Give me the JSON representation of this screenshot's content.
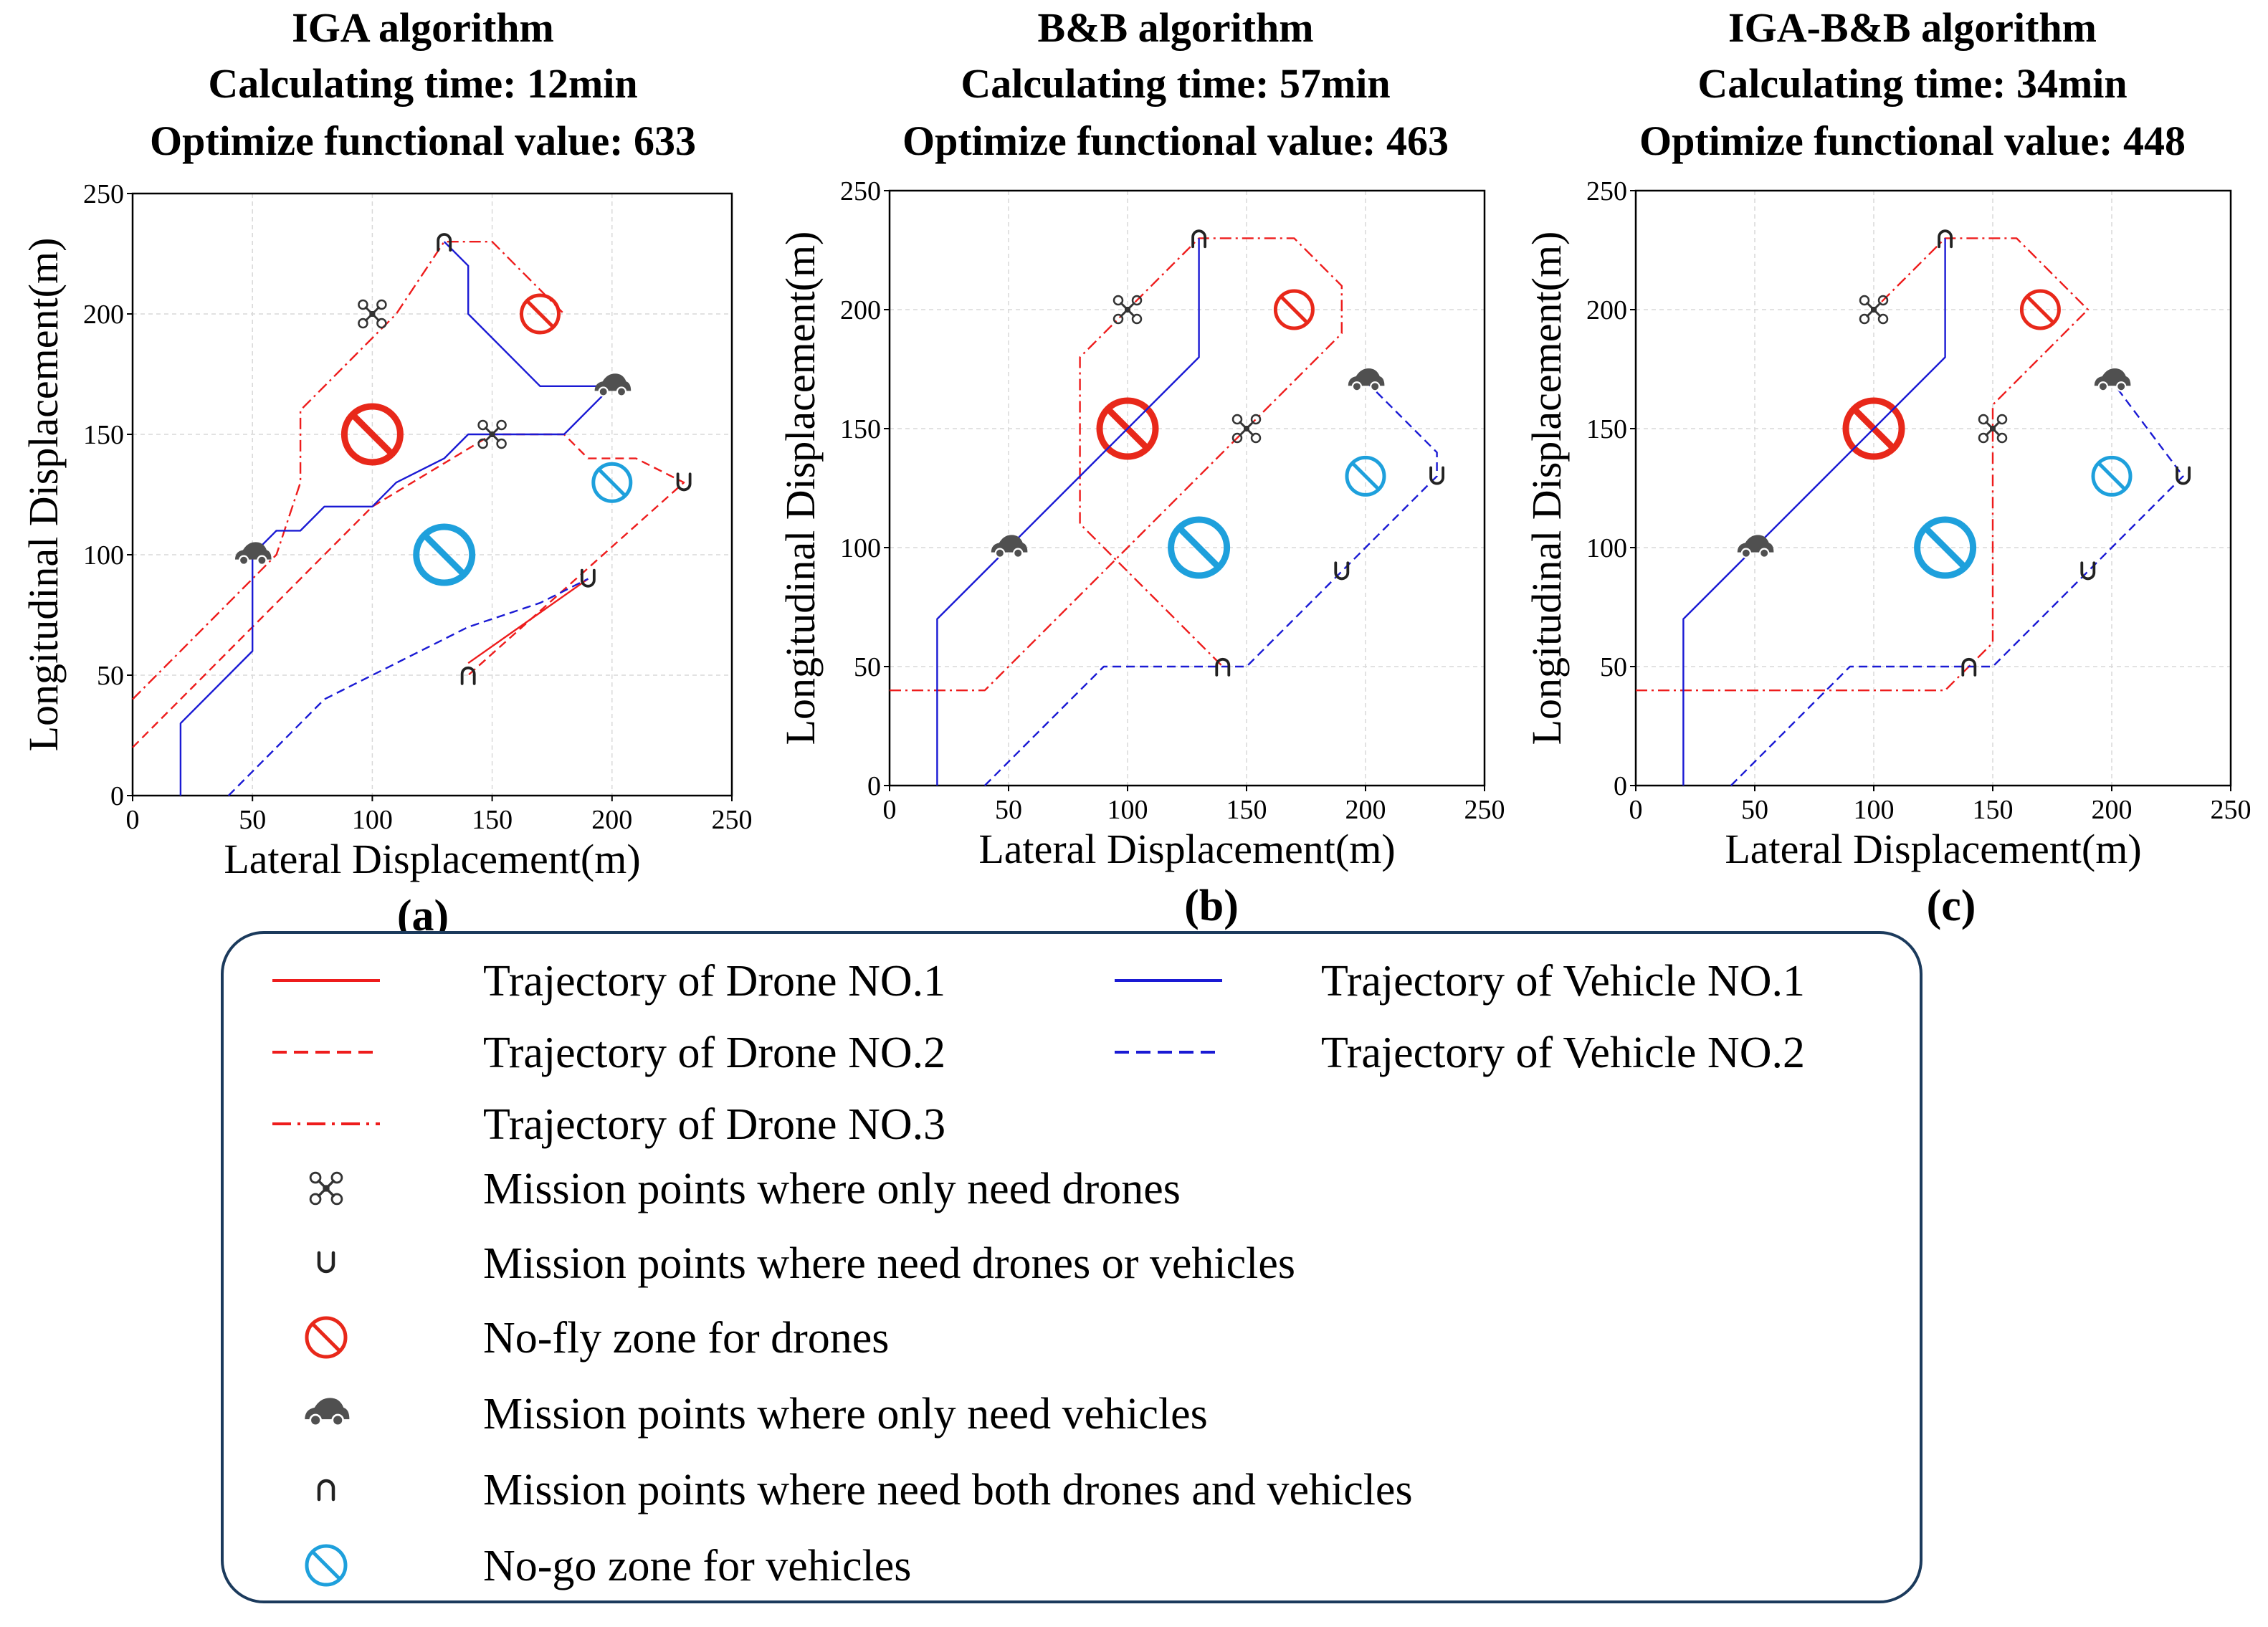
{
  "colors": {
    "drone": "#ee1c1c",
    "vehicle": "#1a1ad4",
    "nofly": "#e8281a",
    "nogo": "#1ea0dc",
    "car": "#505050",
    "grid": "#d9d9d9",
    "legend_border": "#1b3a5c"
  },
  "chart_data": [
    {
      "type": "line",
      "panel_label": "(a)",
      "title": [
        "IGA algorithm",
        "Calculating time: 12min",
        "Optimize functional value: 633"
      ],
      "xlabel": "Lateral Displacement(m)",
      "ylabel": "Longitudinal Displacement(m)",
      "xlim": [
        0,
        250
      ],
      "ylim": [
        0,
        250
      ],
      "xticks": [
        "0",
        "50",
        "100",
        "150",
        "200",
        "250"
      ],
      "yticks": [
        "0",
        "50",
        "100",
        "150",
        "200",
        "250"
      ],
      "grid": true,
      "series": [
        {
          "name": "Trajectory of Drone NO.1",
          "style": "solid",
          "color": "drone",
          "points": [
            [
              140,
              55
            ],
            [
              190,
              90
            ]
          ]
        },
        {
          "name": "Trajectory of Drone NO.2",
          "style": "dashed",
          "color": "drone",
          "points": [
            [
              0,
              20
            ],
            [
              70,
              90
            ],
            [
              80,
              100
            ],
            [
              100,
              120
            ],
            [
              150,
              150
            ],
            [
              180,
              150
            ],
            [
              190,
              140
            ],
            [
              210,
              140
            ],
            [
              230,
              130
            ],
            [
              140,
              50
            ]
          ]
        },
        {
          "name": "Trajectory of Drone NO.3",
          "style": "dashdot",
          "color": "drone",
          "points": [
            [
              0,
              40
            ],
            [
              60,
              100
            ],
            [
              70,
              130
            ],
            [
              70,
              160
            ],
            [
              90,
              180
            ],
            [
              110,
              200
            ],
            [
              130,
              230
            ],
            [
              150,
              230
            ],
            [
              160,
              220
            ],
            [
              170,
              210
            ],
            [
              180,
              200
            ]
          ]
        },
        {
          "name": "Trajectory of Vehicle NO.1",
          "style": "solid",
          "color": "vehicle",
          "points": [
            [
              20,
              0
            ],
            [
              20,
              30
            ],
            [
              50,
              60
            ],
            [
              50,
              100
            ],
            [
              60,
              110
            ],
            [
              70,
              110
            ],
            [
              80,
              120
            ],
            [
              100,
              120
            ],
            [
              110,
              130
            ],
            [
              130,
              140
            ],
            [
              140,
              150
            ],
            [
              150,
              150
            ],
            [
              180,
              150
            ],
            [
              200,
              170
            ],
            [
              170,
              170
            ],
            [
              140,
              200
            ],
            [
              140,
              220
            ],
            [
              130,
              230
            ]
          ]
        },
        {
          "name": "Trajectory of Vehicle NO.2",
          "style": "dashed",
          "color": "vehicle",
          "points": [
            [
              40,
              0
            ],
            [
              80,
              40
            ],
            [
              100,
              50
            ],
            [
              120,
              60
            ],
            [
              140,
              70
            ],
            [
              170,
              80
            ],
            [
              190,
              90
            ]
          ]
        }
      ],
      "markers": {
        "drone_only": [
          [
            100,
            200
          ],
          [
            150,
            150
          ]
        ],
        "drone_or_vehicle": [
          [
            190,
            90
          ],
          [
            230,
            130
          ]
        ],
        "both": [
          [
            130,
            230
          ],
          [
            140,
            50
          ]
        ],
        "vehicle_only": [
          [
            50,
            100
          ],
          [
            200,
            170
          ]
        ],
        "no_fly": [
          {
            "center": [
              100,
              150
            ],
            "size": "large"
          },
          {
            "center": [
              170,
              200
            ],
            "size": "small"
          }
        ],
        "no_go": [
          {
            "center": [
              130,
              100
            ],
            "size": "large"
          },
          {
            "center": [
              200,
              130
            ],
            "size": "small"
          }
        ]
      }
    },
    {
      "type": "line",
      "panel_label": "(b)",
      "title": [
        "B&B algorithm",
        "Calculating time: 57min",
        "Optimize functional value: 463"
      ],
      "xlabel": "Lateral Displacement(m)",
      "ylabel": "Longitudinal Displacement(m)",
      "xlim": [
        0,
        250
      ],
      "ylim": [
        0,
        250
      ],
      "xticks": [
        "0",
        "50",
        "100",
        "150",
        "200",
        "250"
      ],
      "yticks": [
        "0",
        "50",
        "100",
        "150",
        "200",
        "250"
      ],
      "grid": true,
      "series": [
        {
          "name": "Trajectory of Drone NO.2",
          "style": "dashed",
          "color": "drone",
          "points": []
        },
        {
          "name": "Trajectory of Drone NO.3",
          "style": "dashdot",
          "color": "drone",
          "points": [
            [
              0,
              40
            ],
            [
              40,
              40
            ],
            [
              150,
              150
            ],
            [
              160,
              160
            ],
            [
              190,
              190
            ],
            [
              190,
              210
            ],
            [
              170,
              230
            ],
            [
              130,
              230
            ],
            [
              100,
              200
            ],
            [
              80,
              180
            ],
            [
              80,
              110
            ],
            [
              140,
              50
            ]
          ]
        },
        {
          "name": "Trajectory of Vehicle NO.1",
          "style": "solid",
          "color": "vehicle",
          "points": [
            [
              20,
              0
            ],
            [
              20,
              70
            ],
            [
              130,
              180
            ],
            [
              130,
              230
            ]
          ]
        },
        {
          "name": "Trajectory of Vehicle NO.2",
          "style": "dashed",
          "color": "vehicle",
          "points": [
            [
              40,
              0
            ],
            [
              90,
              50
            ],
            [
              150,
              50
            ],
            [
              230,
              130
            ],
            [
              230,
              140
            ],
            [
              200,
              170
            ]
          ]
        }
      ],
      "markers": {
        "drone_only": [
          [
            100,
            200
          ],
          [
            150,
            150
          ]
        ],
        "drone_or_vehicle": [
          [
            190,
            90
          ],
          [
            230,
            130
          ]
        ],
        "both": [
          [
            130,
            230
          ],
          [
            140,
            50
          ]
        ],
        "vehicle_only": [
          [
            50,
            100
          ],
          [
            200,
            170
          ]
        ],
        "no_fly": [
          {
            "center": [
              100,
              150
            ],
            "size": "large"
          },
          {
            "center": [
              170,
              200
            ],
            "size": "small"
          }
        ],
        "no_go": [
          {
            "center": [
              130,
              100
            ],
            "size": "large"
          },
          {
            "center": [
              200,
              130
            ],
            "size": "small"
          }
        ]
      }
    },
    {
      "type": "line",
      "panel_label": "(c)",
      "title": [
        "IGA-B&B algorithm",
        "Calculating time: 34min",
        "Optimize functional value: 448"
      ],
      "xlabel": "Lateral Displacement(m)",
      "ylabel": "Longitudinal Displacement(m)",
      "xlim": [
        0,
        250
      ],
      "ylim": [
        0,
        250
      ],
      "xticks": [
        "0",
        "50",
        "100",
        "150",
        "200",
        "250"
      ],
      "yticks": [
        "0",
        "50",
        "100",
        "150",
        "200",
        "250"
      ],
      "grid": true,
      "series": [
        {
          "name": "Trajectory of Drone NO.3",
          "style": "dashdot",
          "color": "drone",
          "points": [
            [
              0,
              40
            ],
            [
              130,
              40
            ],
            [
              150,
              60
            ],
            [
              150,
              160
            ],
            [
              190,
              200
            ],
            [
              160,
              230
            ],
            [
              130,
              230
            ],
            [
              100,
              200
            ]
          ]
        },
        {
          "name": "Trajectory of Vehicle NO.1",
          "style": "solid",
          "color": "vehicle",
          "points": [
            [
              20,
              0
            ],
            [
              20,
              70
            ],
            [
              130,
              180
            ],
            [
              130,
              230
            ]
          ]
        },
        {
          "name": "Trajectory of Vehicle NO.2",
          "style": "dashed",
          "color": "vehicle",
          "points": [
            [
              40,
              0
            ],
            [
              90,
              50
            ],
            [
              150,
              50
            ],
            [
              230,
              130
            ],
            [
              200,
              170
            ]
          ]
        }
      ],
      "markers": {
        "drone_only": [
          [
            100,
            200
          ],
          [
            150,
            150
          ]
        ],
        "drone_or_vehicle": [
          [
            190,
            90
          ],
          [
            230,
            130
          ]
        ],
        "both": [
          [
            130,
            230
          ],
          [
            140,
            50
          ]
        ],
        "vehicle_only": [
          [
            50,
            100
          ],
          [
            200,
            170
          ]
        ],
        "no_fly": [
          {
            "center": [
              100,
              150
            ],
            "size": "large"
          },
          {
            "center": [
              170,
              200
            ],
            "size": "small"
          }
        ],
        "no_go": [
          {
            "center": [
              130,
              100
            ],
            "size": "large"
          },
          {
            "center": [
              200,
              130
            ],
            "size": "small"
          }
        ]
      }
    }
  ],
  "legend": {
    "items": [
      {
        "label": "Trajectory of Drone NO.1",
        "kind": "line",
        "style": "solid",
        "color": "drone"
      },
      {
        "label": "Trajectory of Vehicle NO.1",
        "kind": "line",
        "style": "solid",
        "color": "vehicle"
      },
      {
        "label": "Trajectory of Drone NO.2",
        "kind": "line",
        "style": "dashed",
        "color": "drone"
      },
      {
        "label": "Trajectory of Vehicle NO.2",
        "kind": "line",
        "style": "dashed",
        "color": "vehicle"
      },
      {
        "label": "Trajectory of Drone NO.3",
        "kind": "line",
        "style": "dashdot",
        "color": "drone"
      },
      {
        "label": "Mission points where only need drones",
        "kind": "drone_only"
      },
      {
        "label": "Mission points where need drones or vehicles",
        "kind": "drone_or_vehicle"
      },
      {
        "label": "No-fly zone for drones",
        "kind": "no_fly"
      },
      {
        "label": "Mission points where only need vehicles",
        "kind": "vehicle_only"
      },
      {
        "label": "Mission points where need both drones and vehicles",
        "kind": "both"
      },
      {
        "label": "No-go zone for vehicles",
        "kind": "no_go"
      }
    ]
  }
}
